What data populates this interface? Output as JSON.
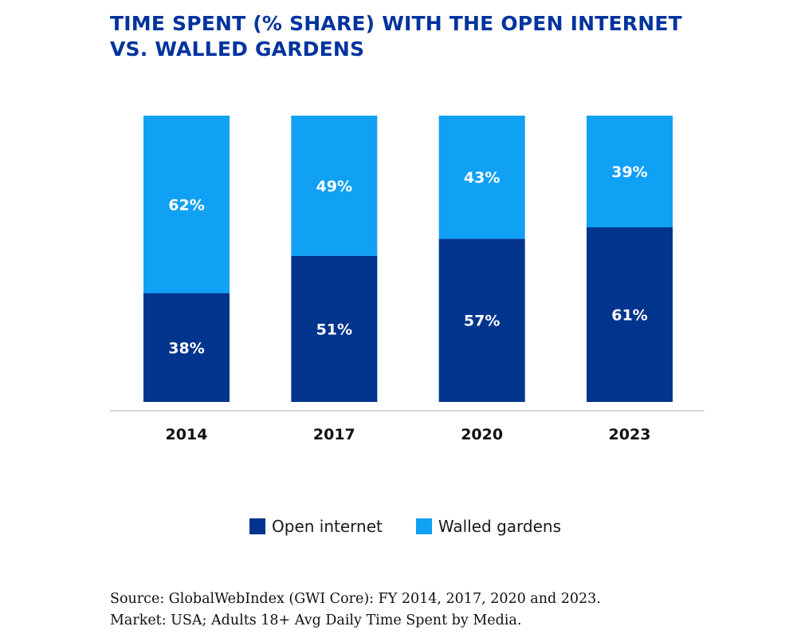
{
  "colors": {
    "open": "#00348d",
    "walled": "#10a0f4",
    "title": "#00339e",
    "axis": "#cccccc",
    "bar_label": "#ffffff",
    "tick_label": "#111111"
  },
  "chart_data": {
    "type": "bar",
    "stacked": true,
    "title": "TIME SPENT (% SHARE) WITH THE OPEN INTERNET VS. WALLED GARDENS",
    "title_lines": [
      "TIME SPENT (% SHARE) WITH THE OPEN INTERNET",
      "VS. WALLED GARDENS"
    ],
    "xlabel": "",
    "ylabel": "",
    "ylim": [
      0,
      100
    ],
    "grid": false,
    "legend_position": "bottom",
    "categories": [
      "2014",
      "2017",
      "2020",
      "2023"
    ],
    "series": [
      {
        "name": "Open internet",
        "values": [
          38,
          51,
          57,
          61
        ],
        "labels": [
          "38%",
          "51%",
          "57%",
          "61%"
        ]
      },
      {
        "name": "Walled gardens",
        "values": [
          62,
          49,
          43,
          39
        ],
        "labels": [
          "62%",
          "49%",
          "43%",
          "39%"
        ]
      }
    ]
  },
  "source": {
    "line1": "Source: GlobalWebIndex (GWI Core): FY 2014, 2017, 2020 and 2023.",
    "line2": "Market: USA; Adults 18+ Avg Daily Time Spent by Media."
  }
}
